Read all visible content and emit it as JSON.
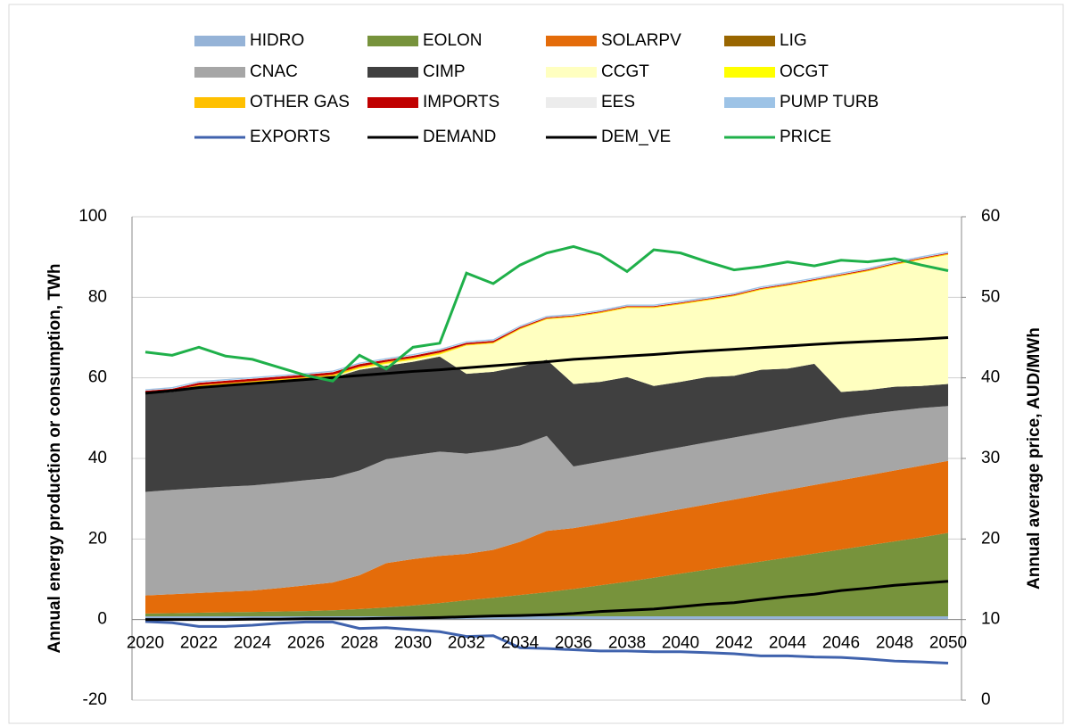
{
  "chart_data": {
    "type": "area",
    "categories": [
      "2020",
      null,
      "2022",
      null,
      "2024",
      null,
      "2026",
      null,
      "2028",
      null,
      "2030",
      null,
      "2032",
      null,
      "2034",
      null,
      "2036",
      null,
      "2038",
      null,
      "2040",
      null,
      "2042",
      null,
      "2044",
      null,
      "2046",
      null,
      "2048",
      null,
      "2050"
    ],
    "ylabel": "Annual energy production or consumption, TWh",
    "y2label": "Annual average price, AUD/MWh",
    "ylim": [
      -20,
      100
    ],
    "yticks": [
      -20,
      0,
      20,
      40,
      60,
      80,
      100
    ],
    "y2lim": [
      0,
      60
    ],
    "y2ticks": [
      0,
      10,
      20,
      30,
      40,
      50,
      60
    ],
    "grid": true,
    "legend": "top",
    "series": [
      {
        "name": "HIDRO",
        "type": "area",
        "color": "#95b3d7",
        "values": [
          0.8,
          0.8,
          0.8,
          0.8,
          0.8,
          0.8,
          0.8,
          0.8,
          0.8,
          0.8,
          0.8,
          0.8,
          0.8,
          0.8,
          0.8,
          0.8,
          0.8,
          0.8,
          0.8,
          0.8,
          0.8,
          0.8,
          0.8,
          0.8,
          0.8,
          0.8,
          0.8,
          0.8,
          0.8,
          0.8,
          0.8
        ]
      },
      {
        "name": "EOLON",
        "type": "area",
        "color": "#77933c",
        "values": [
          0.7,
          0.8,
          0.9,
          1.0,
          1.1,
          1.2,
          1.3,
          1.5,
          1.8,
          2.2,
          2.7,
          3.3,
          4.0,
          4.6,
          5.3,
          6.0,
          6.8,
          7.7,
          8.6,
          9.6,
          10.6,
          11.6,
          12.6,
          13.6,
          14.6,
          15.6,
          16.6,
          17.6,
          18.6,
          19.6,
          20.7
        ]
      },
      {
        "name": "SOLARPV",
        "type": "area",
        "color": "#e46c0a",
        "values": [
          4.5,
          4.7,
          4.9,
          5.1,
          5.3,
          5.8,
          6.4,
          6.9,
          8.4,
          11.0,
          11.5,
          11.7,
          11.5,
          11.9,
          13.2,
          15.2,
          15.1,
          15.3,
          15.6,
          15.8,
          16.0,
          16.2,
          16.4,
          16.6,
          16.8,
          17.0,
          17.2,
          17.4,
          17.6,
          17.8,
          17.9
        ]
      },
      {
        "name": "LIG",
        "type": "area",
        "color": "#996600",
        "values": [
          0,
          0,
          0,
          0,
          0,
          0,
          0,
          0,
          0,
          0,
          0,
          0,
          0,
          0,
          0,
          0,
          0,
          0,
          0,
          0,
          0,
          0,
          0,
          0,
          0,
          0,
          0,
          0,
          0,
          0,
          0
        ]
      },
      {
        "name": "CNAC",
        "type": "area",
        "color": "#a6a6a6",
        "values": [
          25.7,
          25.9,
          26.0,
          26.1,
          26.1,
          26.1,
          26.1,
          26.0,
          26.0,
          25.8,
          25.8,
          25.9,
          24.9,
          24.7,
          23.9,
          23.6,
          15.3,
          15.4,
          15.4,
          15.4,
          15.4,
          15.4,
          15.4,
          15.4,
          15.4,
          15.4,
          15.4,
          15.2,
          14.8,
          14.3,
          13.6
        ]
      },
      {
        "name": "CIMP",
        "type": "area",
        "color": "#404040",
        "values": [
          24.3,
          24.3,
          24.9,
          25.0,
          25.2,
          25.1,
          24.9,
          24.8,
          25.0,
          23.2,
          23.2,
          23.6,
          19.8,
          19.5,
          19.6,
          18.9,
          20.5,
          19.8,
          19.8,
          16.4,
          16.2,
          16.2,
          15.3,
          15.6,
          14.7,
          14.7,
          6.5,
          6.0,
          6.0,
          5.5,
          5.5
        ]
      },
      {
        "name": "CCGT",
        "type": "area",
        "color": "#ffffc0",
        "values": [
          0.1,
          0.1,
          0.2,
          0.2,
          0.2,
          0.2,
          0.2,
          0.3,
          0.3,
          0.5,
          0.5,
          0.5,
          7.0,
          7.0,
          9.2,
          10.0,
          16.5,
          17.0,
          17.1,
          19.3,
          19.2,
          19.0,
          19.7,
          19.8,
          20.5,
          20.5,
          28.7,
          29.4,
          30.2,
          31.3,
          32.0
        ]
      },
      {
        "name": "OCGT",
        "type": "area",
        "color": "#ffff00",
        "values": [
          0.1,
          0.1,
          0.2,
          0.2,
          0.2,
          0.2,
          0.2,
          0.2,
          0.2,
          0.2,
          0.2,
          0.2,
          0.1,
          0.1,
          0.1,
          0.1,
          0.1,
          0.1,
          0.1,
          0.1,
          0.1,
          0.1,
          0.1,
          0.1,
          0.1,
          0.1,
          0.1,
          0.1,
          0.1,
          0.1,
          0.1
        ]
      },
      {
        "name": "OTHER GAS",
        "type": "area",
        "color": "#ffc000",
        "values": [
          0.2,
          0.2,
          0.3,
          0.3,
          0.3,
          0.3,
          0.3,
          0.3,
          0.3,
          0.3,
          0.3,
          0.3,
          0.2,
          0.2,
          0.2,
          0.2,
          0.2,
          0.2,
          0.2,
          0.2,
          0.2,
          0.2,
          0.2,
          0.2,
          0.2,
          0.2,
          0.2,
          0.2,
          0.2,
          0.2,
          0.2
        ]
      },
      {
        "name": "IMPORTS",
        "type": "area",
        "color": "#c00000",
        "values": [
          0.4,
          0.4,
          0.6,
          0.6,
          0.6,
          0.6,
          0.6,
          0.6,
          0.6,
          0.5,
          0.5,
          0.5,
          0.4,
          0.4,
          0.3,
          0.2,
          0.2,
          0.2,
          0.2,
          0.2,
          0.2,
          0.2,
          0.2,
          0.2,
          0.2,
          0.2,
          0.2,
          0.2,
          0.2,
          0.2,
          0.2
        ]
      },
      {
        "name": "EES",
        "type": "area",
        "color": "#ececec",
        "values": [
          0.1,
          0.1,
          0.1,
          0.1,
          0.1,
          0.1,
          0.1,
          0.1,
          0.1,
          0.1,
          0.1,
          0.1,
          0.1,
          0.1,
          0.1,
          0.1,
          0.1,
          0.1,
          0.1,
          0.1,
          0.1,
          0.1,
          0.1,
          0.1,
          0.1,
          0.1,
          0.1,
          0.1,
          0.1,
          0.1,
          0.1
        ]
      },
      {
        "name": "PUMP TURB",
        "type": "area",
        "color": "#9dc3e6",
        "values": [
          0.3,
          0.3,
          0.3,
          0.3,
          0.3,
          0.3,
          0.3,
          0.3,
          0.3,
          0.3,
          0.3,
          0.3,
          0.3,
          0.3,
          0.3,
          0.3,
          0.3,
          0.3,
          0.3,
          0.3,
          0.3,
          0.3,
          0.3,
          0.3,
          0.3,
          0.3,
          0.3,
          0.3,
          0.3,
          0.3,
          0.3
        ]
      },
      {
        "name": "EXPORTS",
        "type": "line",
        "color": "#3f62ad",
        "values": [
          -0.5,
          -0.8,
          -1.7,
          -1.7,
          -1.4,
          -0.9,
          -0.6,
          -0.6,
          -2.2,
          -2.0,
          -2.5,
          -3.0,
          -4.2,
          -4.0,
          -7.0,
          -7.2,
          -7.5,
          -7.8,
          -7.8,
          -8.0,
          -8.0,
          -8.2,
          -8.5,
          -9.0,
          -9.0,
          -9.3,
          -9.4,
          -9.8,
          -10.3,
          -10.5,
          -10.8
        ]
      },
      {
        "name": "DEMAND",
        "type": "line",
        "color": "#000000",
        "values": [
          56.2,
          56.8,
          57.6,
          58.1,
          58.6,
          59.1,
          59.6,
          60.1,
          60.6,
          61.1,
          61.6,
          62.0,
          62.5,
          63.0,
          63.5,
          64.0,
          64.6,
          65.0,
          65.4,
          65.8,
          66.3,
          66.7,
          67.1,
          67.5,
          67.9,
          68.3,
          68.7,
          69.0,
          69.3,
          69.6,
          70.0
        ]
      },
      {
        "name": "DEM_VE",
        "type": "line",
        "color": "#000000",
        "values": [
          0,
          0,
          0,
          0,
          0.1,
          0.1,
          0.2,
          0.2,
          0.2,
          0.3,
          0.4,
          0.5,
          0.7,
          0.9,
          1.0,
          1.2,
          1.5,
          2.0,
          2.3,
          2.6,
          3.2,
          3.8,
          4.2,
          5.0,
          5.7,
          6.3,
          7.2,
          7.8,
          8.5,
          9.0,
          9.5
        ]
      },
      {
        "name": "PRICE",
        "type": "line",
        "axis": "y2",
        "color": "#1fb04a",
        "values": [
          43.2,
          42.8,
          43.8,
          42.7,
          42.3,
          41.3,
          40.3,
          39.6,
          42.8,
          41.1,
          43.8,
          44.3,
          53.0,
          51.7,
          54.0,
          55.5,
          56.3,
          55.3,
          53.2,
          55.9,
          55.5,
          54.4,
          53.4,
          53.8,
          54.4,
          53.9,
          54.6,
          54.4,
          54.8,
          54.0,
          53.3
        ]
      }
    ]
  }
}
